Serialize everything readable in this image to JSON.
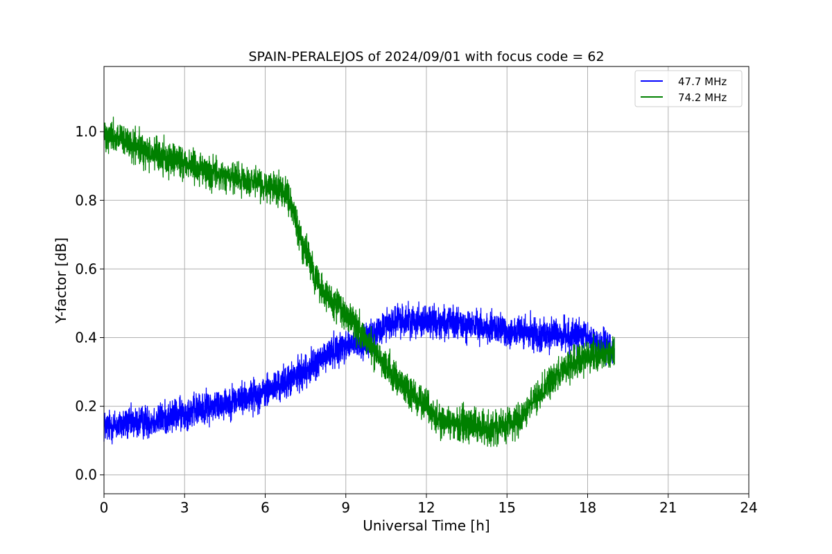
{
  "chart_data": {
    "type": "line",
    "title": "SPAIN-PERALEJOS of 2024/09/01 with focus code = 62",
    "xlabel": "Universal Time [h]",
    "ylabel": "Y-factor [dB]",
    "xlim": [
      0,
      24
    ],
    "ylim": [
      -0.055,
      1.19
    ],
    "xticks": [
      0,
      3,
      6,
      9,
      12,
      15,
      18,
      21,
      24
    ],
    "xtick_labels": [
      "0",
      "3",
      "6",
      "9",
      "12",
      "15",
      "18",
      "21",
      "24"
    ],
    "yticks": [
      0.0,
      0.2,
      0.4,
      0.6,
      0.8,
      1.0
    ],
    "ytick_labels": [
      "0.0",
      "0.2",
      "0.4",
      "0.6",
      "0.8",
      "1.0"
    ],
    "grid": true,
    "legend_position": "top-right",
    "series": [
      {
        "name": "47.7 MHz",
        "color": "#0000ff",
        "noise_amplitude": 0.07,
        "x": [
          0.0,
          1.0,
          2.0,
          3.0,
          4.0,
          5.0,
          6.0,
          7.0,
          8.0,
          8.5,
          9.0,
          9.5,
          10.0,
          10.5,
          11.0,
          11.5,
          12.0,
          13.0,
          14.0,
          15.0,
          16.0,
          17.0,
          18.0,
          18.5,
          19.0
        ],
        "y": [
          0.14,
          0.15,
          0.16,
          0.18,
          0.2,
          0.22,
          0.24,
          0.28,
          0.33,
          0.36,
          0.38,
          0.38,
          0.4,
          0.44,
          0.45,
          0.45,
          0.45,
          0.44,
          0.43,
          0.42,
          0.41,
          0.41,
          0.4,
          0.38,
          0.36
        ]
      },
      {
        "name": "74.2 MHz",
        "color": "#008000",
        "noise_amplitude": 0.07,
        "x": [
          0.0,
          0.5,
          1.0,
          2.0,
          3.0,
          4.0,
          5.0,
          6.0,
          6.8,
          7.2,
          7.5,
          8.0,
          8.5,
          9.0,
          9.5,
          10.0,
          10.5,
          11.0,
          11.5,
          12.0,
          12.5,
          13.0,
          13.5,
          14.0,
          14.5,
          15.0,
          15.5,
          16.0,
          16.5,
          17.0,
          17.5,
          18.0,
          18.5,
          19.0
        ],
        "y": [
          1.0,
          0.98,
          0.96,
          0.93,
          0.91,
          0.88,
          0.86,
          0.84,
          0.83,
          0.72,
          0.65,
          0.55,
          0.5,
          0.47,
          0.42,
          0.37,
          0.32,
          0.27,
          0.23,
          0.2,
          0.16,
          0.15,
          0.15,
          0.14,
          0.14,
          0.15,
          0.16,
          0.22,
          0.26,
          0.3,
          0.32,
          0.34,
          0.35,
          0.36
        ]
      }
    ]
  }
}
